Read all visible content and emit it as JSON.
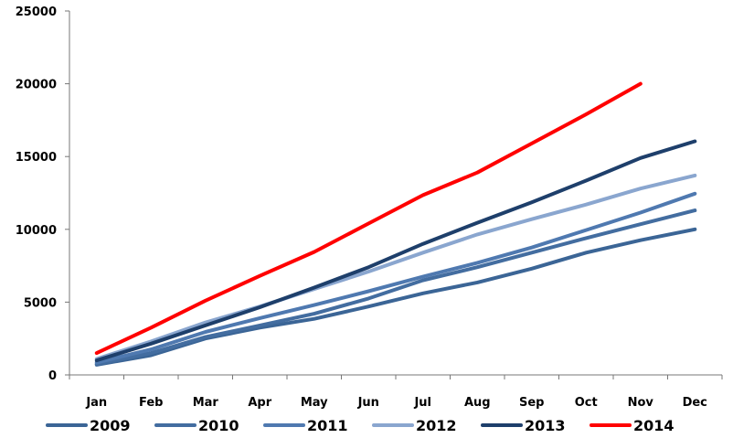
{
  "chart_data": {
    "type": "line",
    "categories": [
      "Jan",
      "Feb",
      "Mar",
      "Apr",
      "May",
      "Jun",
      "Jul",
      "Aug",
      "Sep",
      "Oct",
      "Nov",
      "Dec"
    ],
    "ylim": [
      0,
      25000
    ],
    "yticks": [
      0,
      5000,
      10000,
      15000,
      20000,
      25000
    ],
    "grid": false,
    "legend_placement": "bottom",
    "series": [
      {
        "name": "2009",
        "color": "#3b6596",
        "values": [
          700,
          1350,
          2500,
          3250,
          3850,
          4700,
          5600,
          6350,
          7300,
          8400,
          9250,
          10000
        ]
      },
      {
        "name": "2010",
        "color": "#436da0",
        "values": [
          750,
          1500,
          2600,
          3400,
          4200,
          5250,
          6500,
          7400,
          8400,
          9400,
          10350,
          11300
        ]
      },
      {
        "name": "2011",
        "color": "#4f79b0",
        "values": [
          850,
          1750,
          2950,
          3900,
          4800,
          5750,
          6750,
          7700,
          8750,
          9950,
          11150,
          12450
        ]
      },
      {
        "name": "2012",
        "color": "#8aa6cf",
        "values": [
          1100,
          2300,
          3600,
          4700,
          5900,
          7100,
          8400,
          9650,
          10700,
          11700,
          12800,
          13700
        ]
      },
      {
        "name": "2013",
        "color": "#1e3f6b",
        "values": [
          1000,
          2150,
          3400,
          4650,
          6000,
          7400,
          9000,
          10450,
          11850,
          13350,
          14900,
          16050
        ]
      },
      {
        "name": "2014",
        "color": "#ff0000",
        "values": [
          1500,
          3250,
          5100,
          6800,
          8450,
          10400,
          12350,
          13900,
          15900,
          17900,
          20000,
          null
        ]
      }
    ]
  }
}
